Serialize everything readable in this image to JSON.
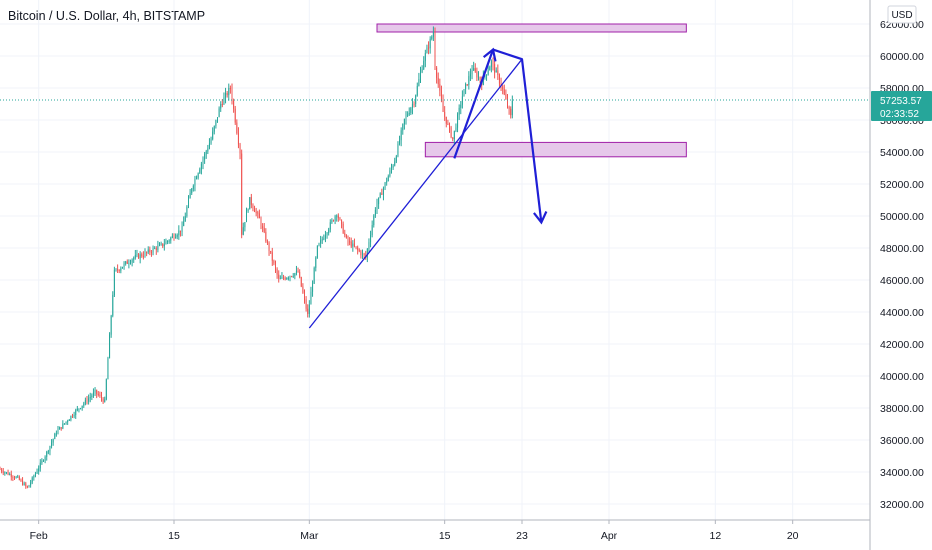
{
  "header": {
    "title": "Bitcoin / U.S. Dollar, 4h, BITSTAMP"
  },
  "currency": "USD",
  "last_price": {
    "value": "57253.57",
    "countdown": "02:33:52",
    "color": "#26a69a"
  },
  "chart_data": {
    "type": "candlestick",
    "symbol": "Bitcoin / U.S. Dollar",
    "interval": "4h",
    "exchange": "BITSTAMP",
    "y_ticks": [
      "32000.00",
      "34000.00",
      "36000.00",
      "38000.00",
      "40000.00",
      "42000.00",
      "44000.00",
      "46000.00",
      "48000.00",
      "50000.00",
      "52000.00",
      "54000.00",
      "56000.00",
      "58000.00",
      "60000.00",
      "62000.00"
    ],
    "ylim": [
      31000,
      63500
    ],
    "x_ticks": [
      "Feb",
      "15",
      "Mar",
      "15",
      "23",
      "Apr",
      "12",
      "20"
    ],
    "x_tick_dates": [
      "2021-02-01",
      "2021-02-15",
      "2021-03-01",
      "2021-03-15",
      "2021-03-23",
      "2021-04-01",
      "2021-04-12",
      "2021-04-20"
    ],
    "xlim": [
      "2021-01-28",
      "2021-04-28"
    ],
    "current_price": 57253.57,
    "price_path": [
      [
        "2021-01-28",
        34200
      ],
      [
        "2021-01-30",
        33600
      ],
      [
        "2021-01-31",
        33000
      ],
      [
        "2021-02-02",
        35200
      ],
      [
        "2021-02-03",
        36500
      ],
      [
        "2021-02-05",
        37800
      ],
      [
        "2021-02-07",
        39000
      ],
      [
        "2021-02-08",
        38400
      ],
      [
        "2021-02-09",
        46500
      ],
      [
        "2021-02-11",
        47400
      ],
      [
        "2021-02-12",
        47600
      ],
      [
        "2021-02-14",
        48200
      ],
      [
        "2021-02-16",
        49200
      ],
      [
        "2021-02-17",
        51800
      ],
      [
        "2021-02-19",
        54800
      ],
      [
        "2021-02-20",
        57000
      ],
      [
        "2021-02-21",
        58000
      ],
      [
        "2021-02-22",
        54000
      ],
      [
        "2021-02-22",
        48500
      ],
      [
        "2021-02-23",
        51000
      ],
      [
        "2021-02-24",
        49800
      ],
      [
        "2021-02-26",
        46000
      ],
      [
        "2021-02-28",
        46500
      ],
      [
        "2021-03-01",
        43800
      ],
      [
        "2021-03-02",
        48000
      ],
      [
        "2021-03-04",
        50200
      ],
      [
        "2021-03-05",
        48500
      ],
      [
        "2021-03-07",
        47400
      ],
      [
        "2021-03-08",
        50500
      ],
      [
        "2021-03-10",
        53500
      ],
      [
        "2021-03-11",
        56000
      ],
      [
        "2021-03-12",
        57200
      ],
      [
        "2021-03-13",
        59800
      ],
      [
        "2021-03-14",
        61500
      ],
      [
        "2021-03-14",
        60000
      ],
      [
        "2021-03-15",
        56500
      ],
      [
        "2021-03-16",
        54800
      ],
      [
        "2021-03-17",
        57500
      ],
      [
        "2021-03-18",
        59200
      ],
      [
        "2021-03-19",
        58400
      ],
      [
        "2021-03-20",
        59600
      ],
      [
        "2021-03-21",
        58200
      ],
      [
        "2021-03-22",
        56200
      ],
      [
        "2021-03-22",
        57250
      ]
    ],
    "annotations": {
      "resistance_zone": {
        "from": "2021-03-08",
        "to": "2021-04-09",
        "low": 61500,
        "high": 62000,
        "color": "#e6c8ea",
        "border": "#a020a8"
      },
      "support_zone": {
        "from": "2021-03-13",
        "to": "2021-04-09",
        "low": 53700,
        "high": 54600,
        "color": "#e6c8ea",
        "border": "#a020a8"
      },
      "trendline": {
        "from": [
          "2021-03-01",
          43000
        ],
        "to": [
          "2021-03-23",
          59800
        ],
        "color": "#1f1fd6"
      },
      "projection_path": {
        "points": [
          [
            "2021-03-16",
            53600
          ],
          [
            "2021-03-20",
            60400
          ],
          [
            "2021-03-23",
            59800
          ],
          [
            "2021-03-25",
            49600
          ]
        ],
        "color": "#1f1fd6"
      }
    }
  }
}
